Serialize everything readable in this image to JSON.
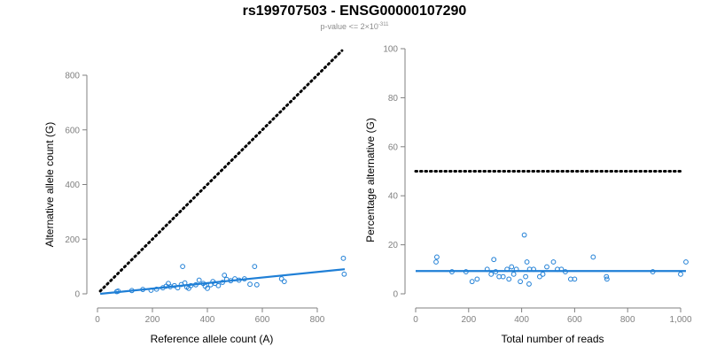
{
  "title": "rs199707503 - ENSG00000107290",
  "subtitle": {
    "prefix": "p-value <= 2",
    "times": "×",
    "base": "10",
    "exponent": "-311"
  },
  "colors": {
    "series": "#1f7fd6",
    "reference_line": "#000000",
    "axis": "#808080"
  },
  "chart_data": [
    {
      "type": "scatter",
      "xlabel": "Reference allele count (A)",
      "ylabel": "Alternative allele count (G)",
      "xlim": [
        0,
        900
      ],
      "ylim": [
        0,
        900
      ],
      "xticks": [
        0,
        200,
        400,
        600,
        800
      ],
      "yticks": [
        0,
        200,
        400,
        600,
        800
      ],
      "xtick_labels": [
        "0",
        "200",
        "400",
        "600",
        "800"
      ],
      "ytick_labels": [
        "0",
        "200",
        "400",
        "600",
        "800"
      ],
      "points": [
        [
          70,
          8
        ],
        [
          75,
          10
        ],
        [
          125,
          12
        ],
        [
          165,
          16
        ],
        [
          195,
          13
        ],
        [
          215,
          17
        ],
        [
          238,
          22
        ],
        [
          250,
          28
        ],
        [
          258,
          38
        ],
        [
          265,
          26
        ],
        [
          280,
          30
        ],
        [
          292,
          22
        ],
        [
          305,
          34
        ],
        [
          310,
          100
        ],
        [
          318,
          40
        ],
        [
          325,
          25
        ],
        [
          332,
          20
        ],
        [
          340,
          30
        ],
        [
          358,
          33
        ],
        [
          370,
          50
        ],
        [
          385,
          38
        ],
        [
          392,
          28
        ],
        [
          400,
          20
        ],
        [
          412,
          33
        ],
        [
          420,
          45
        ],
        [
          428,
          38
        ],
        [
          440,
          30
        ],
        [
          455,
          42
        ],
        [
          462,
          68
        ],
        [
          470,
          53
        ],
        [
          485,
          48
        ],
        [
          500,
          55
        ],
        [
          515,
          50
        ],
        [
          535,
          55
        ],
        [
          555,
          35
        ],
        [
          572,
          100
        ],
        [
          580,
          33
        ],
        [
          670,
          55
        ],
        [
          680,
          45
        ],
        [
          895,
          130
        ],
        [
          898,
          72
        ]
      ],
      "fit_line": [
        [
          10,
          0
        ],
        [
          900,
          90
        ]
      ],
      "reference_line": [
        [
          10,
          10
        ],
        [
          890,
          890
        ]
      ],
      "grid": false,
      "legend": "none"
    },
    {
      "type": "scatter",
      "xlabel": "Total number of reads",
      "ylabel": "Percentage alternative (G)",
      "xlim": [
        0,
        1020
      ],
      "ylim": [
        0,
        100
      ],
      "xticks": [
        0,
        200,
        400,
        600,
        800,
        1000
      ],
      "yticks": [
        0,
        20,
        40,
        60,
        80,
        100
      ],
      "xtick_labels": [
        "0",
        "200",
        "400",
        "600",
        "800",
        "1,000"
      ],
      "ytick_labels": [
        "0",
        "20",
        "40",
        "60",
        "80",
        "100"
      ],
      "points": [
        [
          77,
          13
        ],
        [
          80,
          15
        ],
        [
          137,
          9
        ],
        [
          190,
          9
        ],
        [
          213,
          5
        ],
        [
          232,
          6
        ],
        [
          270,
          10
        ],
        [
          285,
          8
        ],
        [
          295,
          14
        ],
        [
          302,
          9
        ],
        [
          315,
          7
        ],
        [
          330,
          7
        ],
        [
          345,
          10
        ],
        [
          352,
          6
        ],
        [
          362,
          11
        ],
        [
          370,
          8
        ],
        [
          380,
          10
        ],
        [
          395,
          5
        ],
        [
          410,
          24
        ],
        [
          415,
          7
        ],
        [
          420,
          13
        ],
        [
          428,
          4
        ],
        [
          430,
          10
        ],
        [
          445,
          10
        ],
        [
          468,
          7
        ],
        [
          480,
          8
        ],
        [
          495,
          11
        ],
        [
          520,
          13
        ],
        [
          535,
          10
        ],
        [
          550,
          10
        ],
        [
          565,
          9
        ],
        [
          585,
          6
        ],
        [
          600,
          6
        ],
        [
          670,
          15
        ],
        [
          720,
          7
        ],
        [
          722,
          6
        ],
        [
          895,
          9
        ],
        [
          1000,
          8
        ],
        [
          1020,
          13
        ]
      ],
      "fit_line": [
        [
          0,
          9.3
        ],
        [
          1020,
          9.3
        ]
      ],
      "reference_line": [
        [
          0,
          50
        ],
        [
          1000,
          50
        ]
      ],
      "grid": false,
      "legend": "none"
    }
  ]
}
